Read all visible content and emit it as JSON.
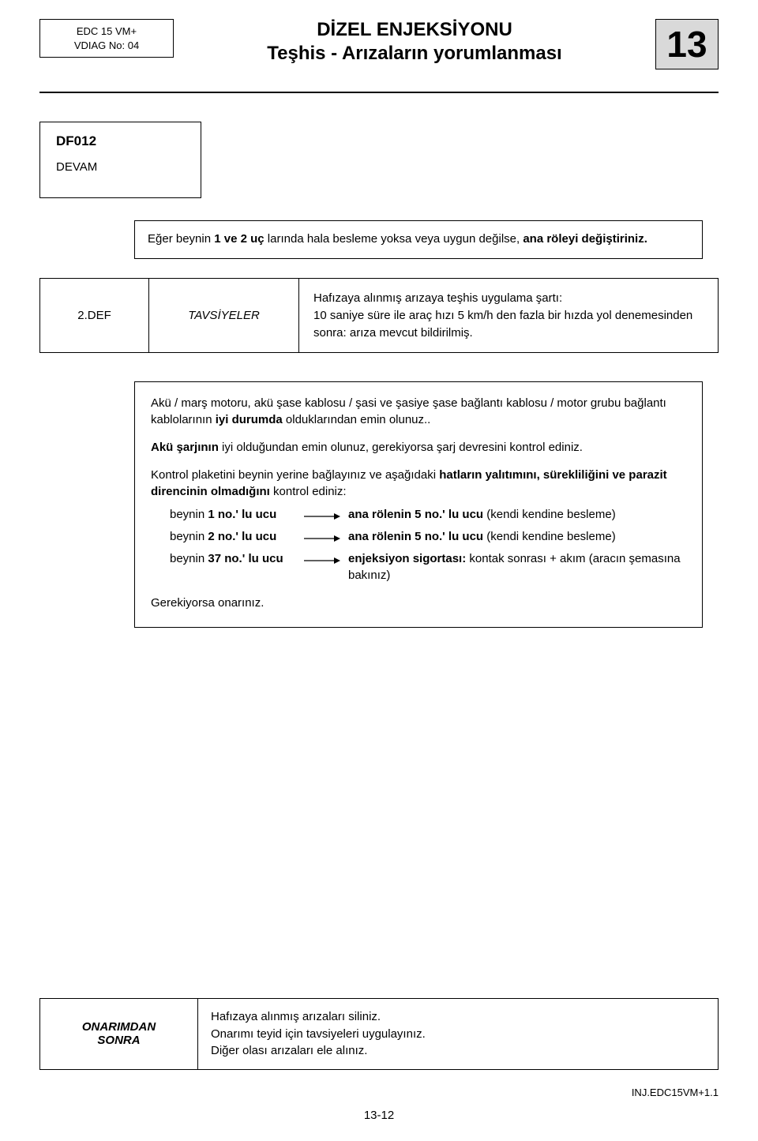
{
  "header": {
    "left_line1": "EDC 15 VM+",
    "left_line2": "VDIAG No: 04",
    "title_line1": "DİZEL ENJEKSİYONU",
    "title_line2": "Teşhis - Arızaların yorumlanması",
    "chapter": "13"
  },
  "devam": {
    "code": "DF012",
    "label": "DEVAM"
  },
  "box1": {
    "text_a": "Eğer beynin ",
    "text_b": "1 ve 2 uç",
    "text_c": " larında hala besleme yoksa veya uygun değilse, ",
    "text_d": "ana röleyi değiştiriniz."
  },
  "tav": {
    "c1": "2.DEF",
    "c2": "TAVSİYELER",
    "c3_l1": "Hafızaya alınmış arızaya teşhis uygulama şartı:",
    "c3_l2": "10 saniye süre ile araç hızı 5 km/h den fazla bir hızda yol denemesinden sonra: arıza mevcut bildirilmiş."
  },
  "main": {
    "p1_a": "Akü / marş motoru, akü şase kablosu / şasi ve şasiye şase bağlantı kablosu / motor grubu bağlantı kablolarının ",
    "p1_b": "iyi durumda",
    "p1_c": " olduklarından emin olunuz..",
    "p2_a": "Akü şarjının",
    "p2_b": " iyi olduğundan emin olunuz, gerekiyorsa şarj devresini kontrol ediniz.",
    "p3_a": "Kontrol plaketini beynin yerine bağlayınız ve aşağıdaki ",
    "p3_b": "hatların yalıtımını, sürekliliğini ve parazit direncinin olmadığını",
    "p3_c": " kontrol ediniz:",
    "rows": [
      {
        "l_a": "beynin ",
        "l_b": "1 no.' lu ucu",
        "r_a": "ana rölenin 5 no.' lu ucu",
        "r_b": " (kendi kendine besleme)"
      },
      {
        "l_a": "beynin ",
        "l_b": "2 no.' lu ucu",
        "r_a": "ana rölenin 5 no.' lu ucu",
        "r_b": " (kendi kendine besleme)"
      },
      {
        "l_a": "beynin ",
        "l_b": "37 no.' lu ucu",
        "r_a": "enjeksiyon sigortası:",
        "r_b": " kontak sonrası + akım (aracın şemasına bakınız)"
      }
    ],
    "p4": "Gerekiyorsa onarınız."
  },
  "footer": {
    "left_l1": "ONARIMDAN",
    "left_l2": "SONRA",
    "r1": "Hafızaya alınmış arızaları siliniz.",
    "r2": "Onarımı teyid için tavsiyeleri uygulayınız.",
    "r3": "Diğer olası arızaları ele alınız."
  },
  "pagenum": "13-12",
  "doccode": "INJ.EDC15VM+1.1"
}
